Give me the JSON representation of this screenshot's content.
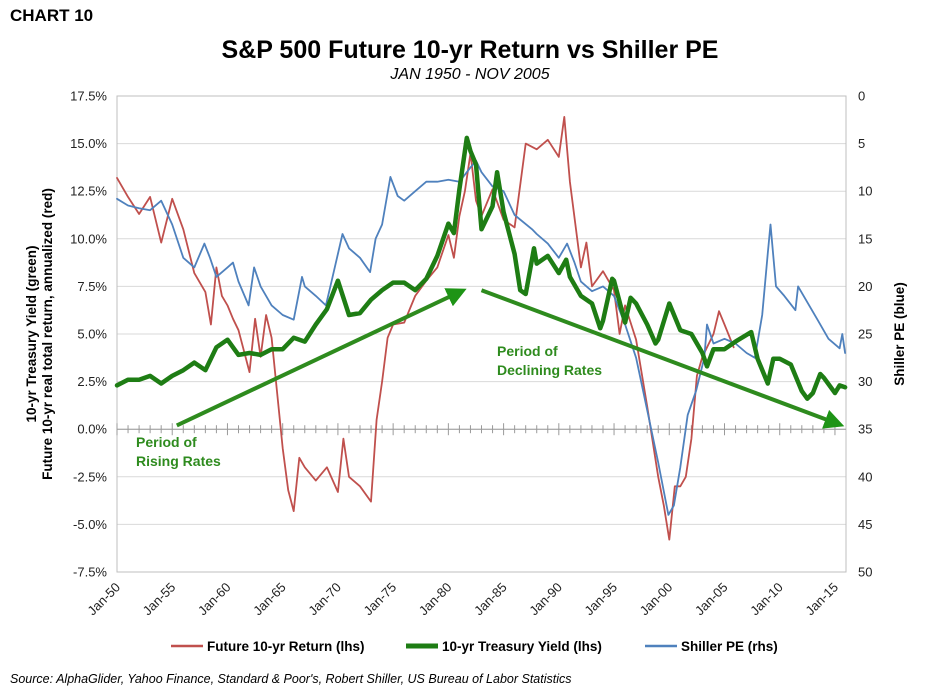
{
  "header": {
    "chart_label": "CHART 10",
    "title": "S&P 500 Future 10-yr Return vs Shiller PE",
    "subtitle": "JAN 1950 - NOV 2005"
  },
  "source": "Source: AlphaGlider, Yahoo Finance, Standard & Poor's, Robert Shiller, US Bureau of Labor Statistics",
  "colors": {
    "return": "#c0504d",
    "treasury": "#1e7d14",
    "shiller": "#4f81bd",
    "annotation": "#2e8b1e"
  },
  "chart_data": {
    "type": "line",
    "x_axis": {
      "type": "date",
      "ticks": [
        "Jan-50",
        "Jan-55",
        "Jan-60",
        "Jan-65",
        "Jan-70",
        "Jan-75",
        "Jan-80",
        "Jan-85",
        "Jan-90",
        "Jan-95",
        "Jan-00",
        "Jan-05",
        "Jan-10",
        "Jan-15"
      ],
      "range": [
        "1950-01",
        "2016-01"
      ]
    },
    "y_left": {
      "label_line1": "10-yr Treasury Yield (green)",
      "label_line2": "Future 10-yr real total return, annualized (red)",
      "range": [
        -7.5,
        17.5
      ],
      "ticks": [
        "17.5%",
        "15.0%",
        "12.5%",
        "10.0%",
        "7.5%",
        "5.0%",
        "2.5%",
        "0.0%",
        "-2.5%",
        "-5.0%",
        "-7.5%"
      ]
    },
    "y_right": {
      "label": "Shiller PE (blue)",
      "range": [
        0,
        50
      ],
      "reversed": true,
      "ticks": [
        "0",
        "5",
        "10",
        "15",
        "20",
        "25",
        "30",
        "35",
        "40",
        "45",
        "50"
      ]
    },
    "grid": {
      "horizontal": true
    },
    "legend_position": "bottom",
    "series": [
      {
        "name": "Future 10-yr Return (lhs)",
        "axis": "left",
        "points": [
          [
            "1950-01",
            13.2
          ],
          [
            "1951-01",
            12.2
          ],
          [
            "1952-01",
            11.3
          ],
          [
            "1953-01",
            12.2
          ],
          [
            "1954-01",
            9.8
          ],
          [
            "1955-01",
            12.1
          ],
          [
            "1956-01",
            10.5
          ],
          [
            "1957-01",
            8.2
          ],
          [
            "1958-01",
            7.2
          ],
          [
            "1958-07",
            5.5
          ],
          [
            "1959-01",
            8.5
          ],
          [
            "1959-07",
            7.0
          ],
          [
            "1960-01",
            6.5
          ],
          [
            "1960-07",
            5.8
          ],
          [
            "1961-01",
            5.2
          ],
          [
            "1962-01",
            3.0
          ],
          [
            "1962-07",
            5.8
          ],
          [
            "1963-01",
            3.8
          ],
          [
            "1963-07",
            6.0
          ],
          [
            "1964-01",
            4.8
          ],
          [
            "1965-01",
            -1.0
          ],
          [
            "1965-07",
            -3.2
          ],
          [
            "1966-01",
            -4.3
          ],
          [
            "1966-07",
            -1.5
          ],
          [
            "1967-01",
            -2.0
          ],
          [
            "1968-01",
            -2.7
          ],
          [
            "1969-01",
            -2.0
          ],
          [
            "1970-01",
            -3.3
          ],
          [
            "1970-07",
            -0.5
          ],
          [
            "1971-01",
            -2.5
          ],
          [
            "1972-01",
            -3.0
          ],
          [
            "1973-01",
            -3.8
          ],
          [
            "1973-07",
            0.5
          ],
          [
            "1974-01",
            2.5
          ],
          [
            "1974-07",
            4.8
          ],
          [
            "1975-01",
            5.5
          ],
          [
            "1976-01",
            5.6
          ],
          [
            "1977-01",
            7.0
          ],
          [
            "1978-01",
            7.8
          ],
          [
            "1979-01",
            8.5
          ],
          [
            "1980-01",
            10.2
          ],
          [
            "1980-07",
            9.0
          ],
          [
            "1981-01",
            11.2
          ],
          [
            "1981-07",
            12.5
          ],
          [
            "1982-01",
            14.5
          ],
          [
            "1982-07",
            12.0
          ],
          [
            "1983-01",
            11.2
          ],
          [
            "1984-01",
            12.6
          ],
          [
            "1985-01",
            11.0
          ],
          [
            "1986-01",
            10.6
          ],
          [
            "1987-01",
            15.0
          ],
          [
            "1988-01",
            14.7
          ],
          [
            "1989-01",
            15.2
          ],
          [
            "1990-01",
            14.3
          ],
          [
            "1990-07",
            16.4
          ],
          [
            "1991-01",
            13.0
          ],
          [
            "1992-01",
            8.5
          ],
          [
            "1992-07",
            9.8
          ],
          [
            "1993-01",
            7.5
          ],
          [
            "1994-01",
            8.3
          ],
          [
            "1995-01",
            7.3
          ],
          [
            "1995-07",
            5.0
          ],
          [
            "1996-01",
            6.5
          ],
          [
            "1997-01",
            4.7
          ],
          [
            "1998-01",
            1.2
          ],
          [
            "1999-01",
            -2.5
          ],
          [
            "1999-07",
            -4.0
          ],
          [
            "2000-01",
            -5.8
          ],
          [
            "2000-07",
            -3.0
          ],
          [
            "2001-01",
            -3.0
          ],
          [
            "2001-07",
            -2.5
          ],
          [
            "2002-01",
            -0.5
          ],
          [
            "2002-07",
            2.8
          ],
          [
            "2003-01",
            3.8
          ],
          [
            "2004-01",
            5.0
          ],
          [
            "2004-07",
            6.2
          ],
          [
            "2005-01",
            5.5
          ],
          [
            "2005-11",
            4.3
          ]
        ]
      },
      {
        "name": "10-yr Treasury Yield (lhs)",
        "axis": "left",
        "points": [
          [
            "1950-01",
            2.3
          ],
          [
            "1951-01",
            2.6
          ],
          [
            "1952-01",
            2.6
          ],
          [
            "1953-01",
            2.8
          ],
          [
            "1954-01",
            2.4
          ],
          [
            "1955-01",
            2.8
          ],
          [
            "1956-01",
            3.1
          ],
          [
            "1957-01",
            3.5
          ],
          [
            "1958-01",
            3.1
          ],
          [
            "1959-01",
            4.3
          ],
          [
            "1960-01",
            4.7
          ],
          [
            "1961-01",
            3.9
          ],
          [
            "1962-01",
            4.0
          ],
          [
            "1963-01",
            3.9
          ],
          [
            "1964-01",
            4.2
          ],
          [
            "1965-01",
            4.2
          ],
          [
            "1966-01",
            4.8
          ],
          [
            "1967-01",
            4.6
          ],
          [
            "1968-01",
            5.5
          ],
          [
            "1969-01",
            6.3
          ],
          [
            "1970-01",
            7.8
          ],
          [
            "1971-01",
            6.0
          ],
          [
            "1972-01",
            6.1
          ],
          [
            "1973-01",
            6.8
          ],
          [
            "1974-01",
            7.3
          ],
          [
            "1975-01",
            7.7
          ],
          [
            "1976-01",
            7.7
          ],
          [
            "1977-01",
            7.3
          ],
          [
            "1978-01",
            7.9
          ],
          [
            "1979-01",
            9.1
          ],
          [
            "1980-01",
            10.8
          ],
          [
            "1980-07",
            10.3
          ],
          [
            "1981-01",
            12.6
          ],
          [
            "1981-09",
            15.3
          ],
          [
            "1982-01",
            14.6
          ],
          [
            "1982-07",
            13.9
          ],
          [
            "1983-01",
            10.5
          ],
          [
            "1984-01",
            11.7
          ],
          [
            "1984-06",
            13.5
          ],
          [
            "1985-01",
            11.4
          ],
          [
            "1986-01",
            9.2
          ],
          [
            "1986-07",
            7.3
          ],
          [
            "1987-01",
            7.1
          ],
          [
            "1987-10",
            9.5
          ],
          [
            "1988-01",
            8.7
          ],
          [
            "1989-01",
            9.1
          ],
          [
            "1990-01",
            8.2
          ],
          [
            "1990-09",
            8.9
          ],
          [
            "1991-01",
            8.0
          ],
          [
            "1992-01",
            7.0
          ],
          [
            "1993-01",
            6.6
          ],
          [
            "1993-10",
            5.3
          ],
          [
            "1994-01",
            5.7
          ],
          [
            "1994-11",
            7.9
          ],
          [
            "1995-01",
            7.8
          ],
          [
            "1996-01",
            5.6
          ],
          [
            "1996-07",
            6.9
          ],
          [
            "1997-01",
            6.6
          ],
          [
            "1998-01",
            5.5
          ],
          [
            "1998-10",
            4.5
          ],
          [
            "1999-01",
            4.7
          ],
          [
            "2000-01",
            6.6
          ],
          [
            "2001-01",
            5.2
          ],
          [
            "2002-01",
            5.0
          ],
          [
            "2003-01",
            4.0
          ],
          [
            "2003-06",
            3.3
          ],
          [
            "2004-01",
            4.2
          ],
          [
            "2005-01",
            4.2
          ],
          [
            "2006-01",
            4.6
          ],
          [
            "2007-06",
            5.1
          ],
          [
            "2008-01",
            3.7
          ],
          [
            "2008-12",
            2.4
          ],
          [
            "2009-06",
            3.7
          ],
          [
            "2010-01",
            3.7
          ],
          [
            "2011-01",
            3.4
          ],
          [
            "2012-01",
            2.0
          ],
          [
            "2012-07",
            1.6
          ],
          [
            "2013-01",
            1.9
          ],
          [
            "2013-09",
            2.9
          ],
          [
            "2014-01",
            2.7
          ],
          [
            "2015-01",
            1.9
          ],
          [
            "2015-06",
            2.3
          ],
          [
            "2015-12",
            2.2
          ]
        ]
      },
      {
        "name": "Shiller PE (rhs)",
        "axis": "right",
        "points": [
          [
            "1950-01",
            10.8
          ],
          [
            "1951-01",
            11.5
          ],
          [
            "1952-01",
            11.8
          ],
          [
            "1953-01",
            12.0
          ],
          [
            "1954-01",
            11.0
          ],
          [
            "1955-01",
            13.5
          ],
          [
            "1956-01",
            17.0
          ],
          [
            "1957-01",
            18.0
          ],
          [
            "1957-12",
            15.5
          ],
          [
            "1958-06",
            17.0
          ],
          [
            "1959-01",
            19.0
          ],
          [
            "1960-01",
            18.0
          ],
          [
            "1960-07",
            17.5
          ],
          [
            "1961-01",
            19.5
          ],
          [
            "1961-12",
            22.0
          ],
          [
            "1962-06",
            18.0
          ],
          [
            "1963-01",
            20.0
          ],
          [
            "1964-01",
            22.0
          ],
          [
            "1965-01",
            23.0
          ],
          [
            "1966-01",
            23.5
          ],
          [
            "1966-10",
            19.0
          ],
          [
            "1967-01",
            20.0
          ],
          [
            "1968-01",
            21.0
          ],
          [
            "1968-12",
            22.0
          ],
          [
            "1969-06",
            19.5
          ],
          [
            "1970-06",
            14.5
          ],
          [
            "1971-01",
            16.0
          ],
          [
            "1972-01",
            17.0
          ],
          [
            "1972-12",
            18.5
          ],
          [
            "1973-06",
            15.0
          ],
          [
            "1974-01",
            13.5
          ],
          [
            "1974-10",
            8.5
          ],
          [
            "1975-06",
            10.5
          ],
          [
            "1976-01",
            11.0
          ],
          [
            "1977-01",
            10.0
          ],
          [
            "1978-01",
            9.0
          ],
          [
            "1979-01",
            9.0
          ],
          [
            "1980-01",
            8.8
          ],
          [
            "1981-01",
            9.0
          ],
          [
            "1982-01",
            7.5
          ],
          [
            "1982-07",
            6.8
          ],
          [
            "1983-01",
            8.0
          ],
          [
            "1984-01",
            9.5
          ],
          [
            "1985-01",
            10.0
          ],
          [
            "1986-01",
            12.5
          ],
          [
            "1987-08",
            14.0
          ],
          [
            "1988-01",
            14.5
          ],
          [
            "1989-01",
            15.5
          ],
          [
            "1990-01",
            17.0
          ],
          [
            "1990-10",
            15.5
          ],
          [
            "1991-06",
            17.5
          ],
          [
            "1992-01",
            19.5
          ],
          [
            "1993-01",
            20.5
          ],
          [
            "1994-01",
            20.0
          ],
          [
            "1995-01",
            21.0
          ],
          [
            "1996-01",
            24.0
          ],
          [
            "1997-01",
            27.5
          ],
          [
            "1998-01",
            33.0
          ],
          [
            "1999-01",
            38.5
          ],
          [
            "1999-12",
            44.0
          ],
          [
            "2000-06",
            43.0
          ],
          [
            "2001-01",
            39.0
          ],
          [
            "2001-09",
            33.5
          ],
          [
            "2002-06",
            31.0
          ],
          [
            "2003-03",
            27.5
          ],
          [
            "2003-06",
            24.0
          ],
          [
            "2004-01",
            26.0
          ],
          [
            "2005-01",
            25.5
          ],
          [
            "2006-01",
            26.0
          ],
          [
            "2007-01",
            27.0
          ],
          [
            "2007-10",
            27.5
          ],
          [
            "2008-06",
            23.0
          ],
          [
            "2008-12",
            16.5
          ],
          [
            "2009-03",
            13.5
          ],
          [
            "2009-09",
            20.0
          ],
          [
            "2010-06",
            21.0
          ],
          [
            "2011-06",
            22.5
          ],
          [
            "2011-09",
            20.0
          ],
          [
            "2012-06",
            21.5
          ],
          [
            "2013-06",
            23.5
          ],
          [
            "2014-06",
            25.5
          ],
          [
            "2015-06",
            26.5
          ],
          [
            "2015-09",
            25.0
          ],
          [
            "2015-12",
            27.0
          ]
        ]
      }
    ],
    "annotations": [
      {
        "text_lines": [
          "Period of",
          "Rising Rates"
        ],
        "arrow_from": [
          "1955-06",
          0.2
        ],
        "arrow_to": [
          "1981-01",
          7.2
        ]
      },
      {
        "text_lines": [
          "Period of",
          "Declining Rates"
        ],
        "arrow_from": [
          "1983-01",
          7.3
        ],
        "arrow_to": [
          "2015-03",
          0.3
        ]
      }
    ]
  }
}
